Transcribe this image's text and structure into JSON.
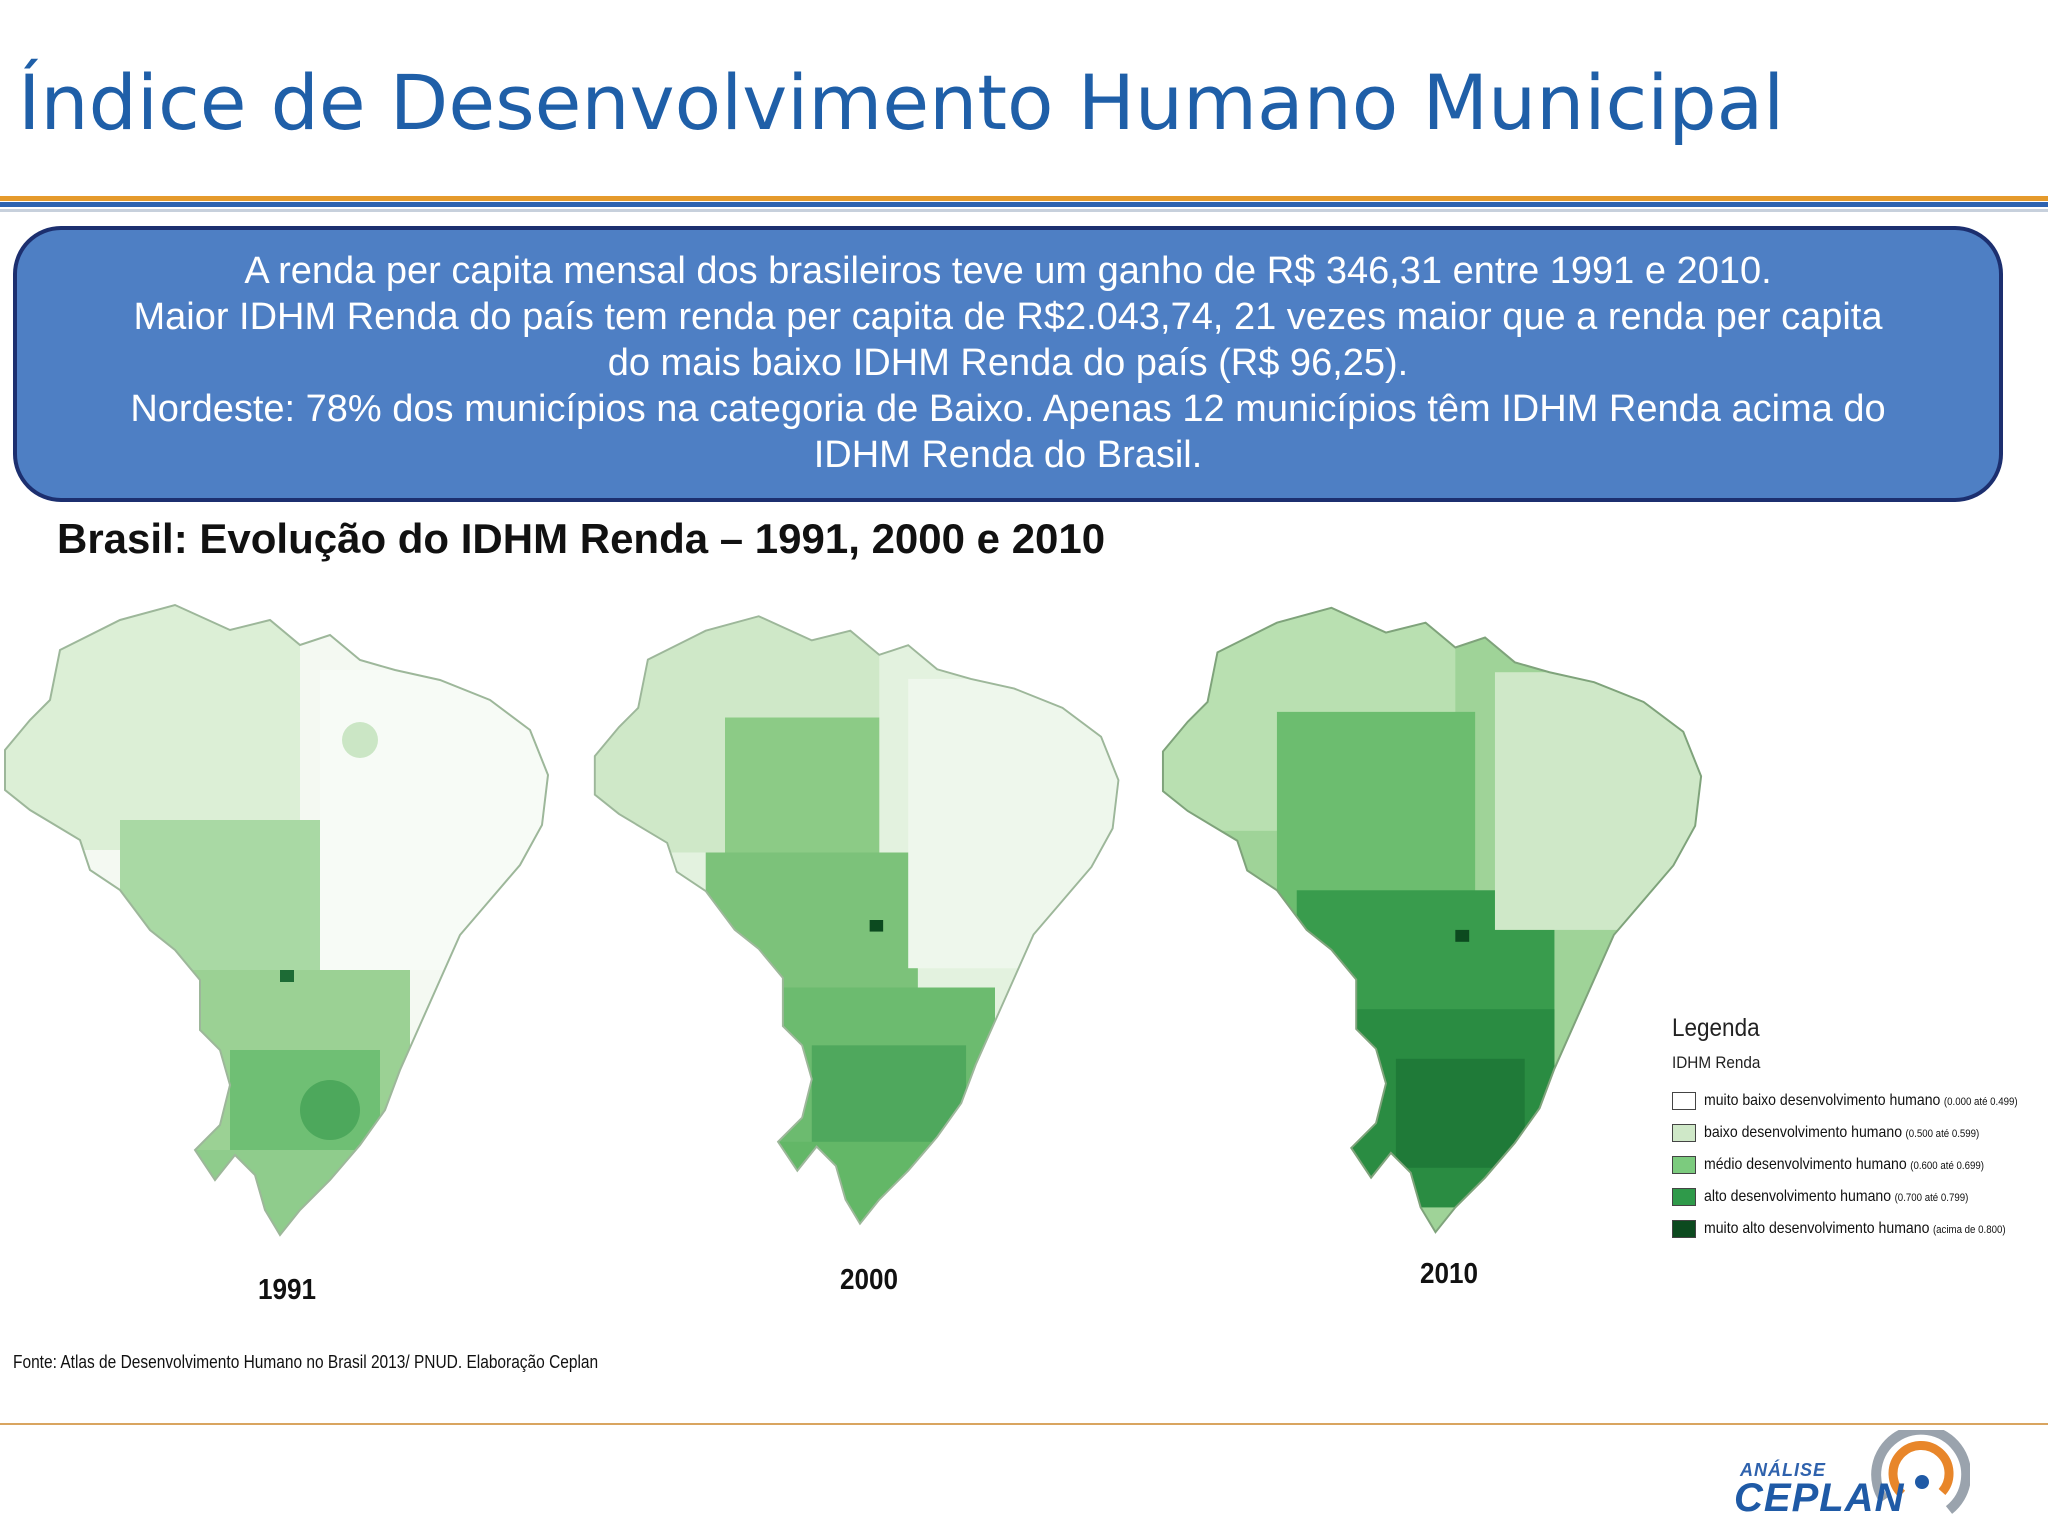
{
  "header": {
    "title": "Índice de Desenvolvimento Humano Municipal"
  },
  "summary": {
    "lines": [
      "A renda per capita mensal dos brasileiros  teve um ganho de R$ 346,31 entre 1991 e 2010.",
      "Maior IDHM Renda do país tem renda per capita de R$2.043,74, 21 vezes maior que a renda per capita",
      "do mais baixo IDHM Renda do país (R$ 96,25).",
      "Nordeste: 78% dos municípios na categoria de Baixo. Apenas 12 municípios têm IDHM Renda acima do",
      "IDHM Renda do Brasil."
    ]
  },
  "maps_heading": "Brasil: Evolução do IDHM Renda – 1991, 2000 e 2010",
  "maps": [
    {
      "year": "1991"
    },
    {
      "year": "2000"
    },
    {
      "year": "2010"
    }
  ],
  "legend": {
    "title": "Legenda",
    "subtitle": "IDHM Renda",
    "items": [
      {
        "label": "muito baixo desenvolvimento humano",
        "range": "(0.000 até 0.499)",
        "color": "#ffffff"
      },
      {
        "label": "baixo desenvolvimento humano",
        "range": "(0.500 até 0.599)",
        "color": "#cfe8c8"
      },
      {
        "label": "médio desenvolvimento humano",
        "range": "(0.600 até 0.699)",
        "color": "#7ccb7e"
      },
      {
        "label": "alto desenvolvimento humano",
        "range": "(0.700 até 0.799)",
        "color": "#2f9a4a"
      },
      {
        "label": "muito alto desenvolvimento humano",
        "range": "(acima de 0.800)",
        "color": "#0c4a1f"
      }
    ]
  },
  "source": "Fonte: Atlas de Desenvolvimento Humano no Brasil 2013/ PNUD. Elaboração Ceplan",
  "logo": {
    "top_text": "ANÁLISE",
    "main_text": "CEPLAN"
  },
  "colors": {
    "title_blue": "#1f5fa8",
    "box_fill": "#4e7fc4",
    "box_border": "#1c2f6f",
    "accent_orange": "#e59a2c"
  }
}
